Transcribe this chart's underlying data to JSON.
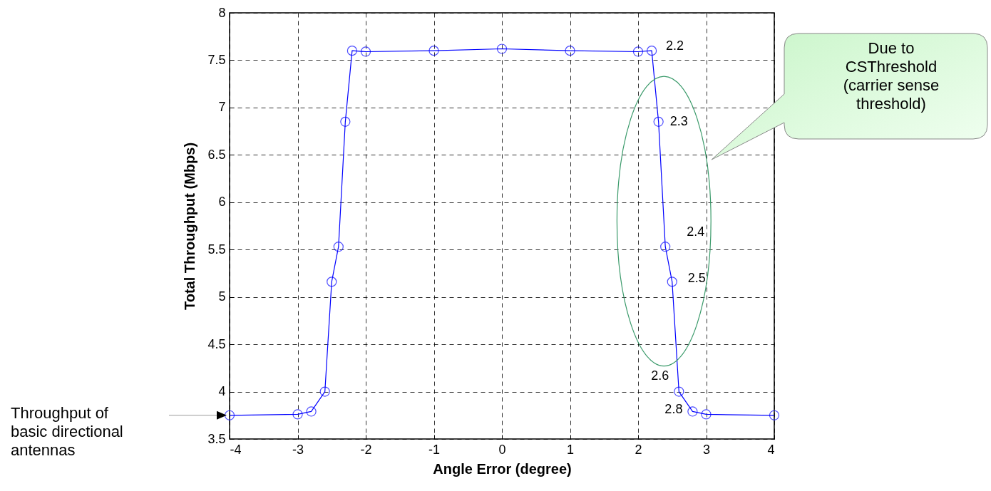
{
  "chart_data": {
    "type": "line",
    "xlabel": "Angle Error (degree)",
    "ylabel": "Total Throughput (Mbps)",
    "x": [
      -4,
      -3,
      -2.8,
      -2.6,
      -2.5,
      -2.4,
      -2.3,
      -2.2,
      -2,
      -1,
      0,
      1,
      2,
      2.2,
      2.3,
      2.4,
      2.5,
      2.6,
      2.8,
      3,
      4
    ],
    "series": [
      {
        "color": "#0000ff",
        "values": [
          3.75,
          3.76,
          3.79,
          4.0,
          5.16,
          5.53,
          6.85,
          7.6,
          7.59,
          7.6,
          7.62,
          7.6,
          7.59,
          7.6,
          6.85,
          5.53,
          5.16,
          4.0,
          3.79,
          3.76,
          3.75
        ]
      }
    ],
    "xlim": [
      -4,
      4
    ],
    "xticks": [
      -4,
      -3,
      -2,
      -1,
      0,
      1,
      2,
      3,
      4
    ],
    "ylim": [
      3.5,
      8
    ],
    "yticks": [
      3.5,
      4,
      4.5,
      5,
      5.5,
      6,
      6.5,
      7,
      7.5,
      8
    ],
    "grid": true,
    "marker": "circle",
    "line_style": "solid",
    "annotations": [
      {
        "text": "2.2",
        "x": 2.2,
        "y": 7.6
      },
      {
        "text": "2.3",
        "x": 2.3,
        "y": 6.85
      },
      {
        "text": "2.4",
        "x": 2.4,
        "y": 5.53
      },
      {
        "text": "2.5",
        "x": 2.5,
        "y": 5.16
      },
      {
        "text": "2.6",
        "x": 2.6,
        "y": 4.0
      },
      {
        "text": "2.8",
        "x": 2.8,
        "y": 3.79
      },
      "Throughput of basic directional antennas",
      "Due to CSThreshold (carrier sense threshold)"
    ]
  }
}
